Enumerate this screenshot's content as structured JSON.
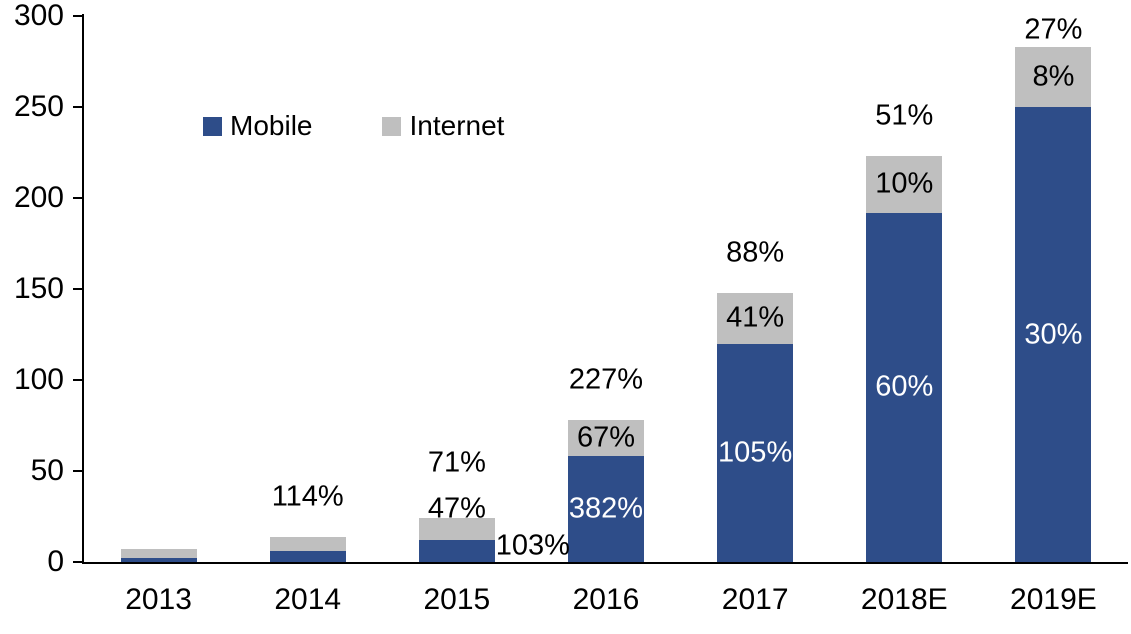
{
  "chart_data": {
    "type": "bar",
    "stacked": true,
    "title": "",
    "xlabel": "",
    "ylabel": "",
    "categories": [
      "2013",
      "2014",
      "2015",
      "2016",
      "2017",
      "2018E",
      "2019E"
    ],
    "series": [
      {
        "name": "Mobile",
        "color": "#2e4d89",
        "values": [
          2,
          6,
          12,
          58,
          120,
          192,
          250
        ]
      },
      {
        "name": "Internet",
        "color": "#bfbfbf",
        "values": [
          5,
          8,
          12,
          20,
          28,
          31,
          33
        ]
      }
    ],
    "growth_labels": {
      "total": [
        "",
        "114%",
        "71%",
        "227%",
        "88%",
        "51%",
        "27%"
      ],
      "internet": [
        "",
        "",
        "47%",
        "67%",
        "41%",
        "10%",
        "8%"
      ],
      "mobile": [
        "",
        "",
        "103%",
        "382%",
        "105%",
        "60%",
        "30%"
      ]
    },
    "label_placement": {
      "internet": [
        "none",
        "none",
        "above",
        "inside",
        "inside",
        "inside",
        "inside"
      ],
      "mobile": [
        "none",
        "none",
        "outside-right",
        "inside",
        "inside",
        "inside",
        "inside"
      ]
    },
    "ylim": [
      0,
      300
    ],
    "yticks": [
      0,
      50,
      100,
      150,
      200,
      250,
      300
    ],
    "grid": false,
    "legend": {
      "position": "top-left-inside",
      "entries": [
        "Mobile",
        "Internet"
      ]
    },
    "axis_color": "#000000",
    "text_color": "#000000",
    "inside_label_color": "#ffffff"
  }
}
